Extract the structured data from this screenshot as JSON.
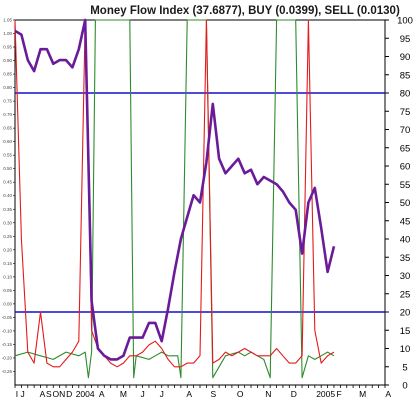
{
  "chart_data": {
    "type": "line",
    "title": "Money Flow Index (37.6877), BUY (0.0399), SELL (0.0130)",
    "ylim": [
      0,
      100
    ],
    "right_axis_ticks": [
      0,
      5,
      10,
      15,
      20,
      25,
      30,
      35,
      40,
      45,
      50,
      55,
      60,
      65,
      70,
      75,
      80,
      85,
      90,
      95,
      100
    ],
    "left_axis_ylim": [
      -0.3,
      1.05
    ],
    "left_axis_ticks": [
      "-0.25",
      "-0.20",
      "-0.15",
      "-0.10",
      "-0.05",
      "0.00",
      "0.05",
      "0.10",
      "0.15",
      "0.20",
      "0.25",
      "0.30",
      "0.35",
      "0.40",
      "0.45",
      "0.50",
      "0.55",
      "0.60",
      "0.65",
      "0.70",
      "0.75",
      "0.80",
      "0.85",
      "0.90",
      "0.95",
      "1.00",
      "1.05"
    ],
    "x_domain": [
      0,
      58
    ],
    "x_labels": [
      {
        "x": 0.3,
        "label": "I"
      },
      {
        "x": 1.2,
        "label": "J"
      },
      {
        "x": 4.3,
        "label": "A"
      },
      {
        "x": 5.3,
        "label": "S"
      },
      {
        "x": 6.4,
        "label": "O"
      },
      {
        "x": 7.4,
        "label": "N"
      },
      {
        "x": 8.5,
        "label": "D"
      },
      {
        "x": 11.0,
        "label": "2004"
      },
      {
        "x": 13.6,
        "label": "A"
      },
      {
        "x": 17.0,
        "label": "M"
      },
      {
        "x": 20.0,
        "label": "J"
      },
      {
        "x": 23.0,
        "label": "J"
      },
      {
        "x": 27.3,
        "label": "A"
      },
      {
        "x": 31.1,
        "label": "S"
      },
      {
        "x": 35.3,
        "label": "O"
      },
      {
        "x": 39.7,
        "label": "N"
      },
      {
        "x": 43.7,
        "label": "D"
      },
      {
        "x": 48.7,
        "label": "2005"
      },
      {
        "x": 50.8,
        "label": "F"
      },
      {
        "x": 54.5,
        "label": "M"
      },
      {
        "x": 58.5,
        "label": "A"
      }
    ],
    "reference_lines": [
      {
        "y": 80,
        "color": "#1111cc"
      },
      {
        "y": 20,
        "color": "#1111cc"
      }
    ],
    "series": [
      {
        "color": "#6a1b9a",
        "x": [
          0,
          1,
          2,
          3,
          4,
          5,
          6,
          7,
          8,
          9,
          10,
          11,
          12,
          13,
          14,
          15,
          16,
          17,
          18,
          19,
          20,
          21,
          22,
          23,
          24,
          25,
          26,
          27,
          28,
          29,
          30,
          31,
          32,
          33,
          34,
          35,
          36,
          37,
          38,
          39,
          40,
          41,
          42,
          43,
          44,
          45,
          46,
          47,
          48,
          49,
          50
        ],
        "values": [
          97,
          96,
          89,
          86,
          92,
          92,
          88,
          89,
          89,
          87,
          92,
          100,
          23,
          10,
          8,
          7,
          7,
          8,
          13,
          13,
          13,
          17,
          17,
          12,
          21,
          31,
          40,
          46,
          52,
          50,
          61,
          77,
          62,
          58,
          60,
          62,
          58,
          59,
          55,
          57,
          56,
          55,
          53,
          50,
          48,
          36,
          50,
          54,
          43,
          31,
          38
        ]
      },
      {
        "color": "#2e8b2e",
        "x": [
          0,
          2,
          4,
          6,
          8,
          10,
          11,
          11.5,
          12,
          12.6,
          13,
          14,
          15,
          16,
          17,
          18,
          18.6,
          19,
          21,
          22,
          23,
          24,
          25.5,
          26,
          27,
          27.6,
          28,
          29,
          30,
          31,
          33,
          35,
          36,
          37,
          38,
          39,
          40,
          41,
          42,
          43,
          43.6,
          44,
          45,
          46,
          47,
          48,
          49,
          50
        ],
        "values": [
          8,
          9,
          8,
          7,
          9,
          8,
          9,
          2,
          9,
          100,
          100,
          100,
          100,
          100,
          100,
          100,
          2,
          8,
          7,
          8,
          9,
          8,
          8,
          2,
          100,
          100,
          100,
          100,
          100,
          2,
          8,
          9,
          8,
          9,
          8,
          7,
          2,
          100,
          100,
          100,
          100,
          100,
          2,
          8,
          7,
          8,
          9,
          8
        ]
      },
      {
        "color": "#e41a1c",
        "x": [
          0,
          1,
          2,
          3,
          4,
          5,
          6,
          7,
          8,
          9,
          10,
          11,
          12,
          13,
          14,
          15,
          16,
          17,
          18,
          19,
          20,
          21,
          22,
          23,
          24,
          25,
          26,
          27,
          28,
          29,
          30,
          31,
          32,
          33,
          34,
          35,
          36,
          37,
          38,
          39,
          40,
          41,
          42,
          43,
          44,
          45,
          46,
          47,
          48,
          49,
          50
        ],
        "values": [
          100,
          40,
          9,
          6,
          20,
          6,
          5,
          5,
          7,
          9,
          12,
          100,
          15,
          10,
          8,
          6,
          5,
          6,
          8,
          8,
          9,
          11,
          12,
          10,
          7,
          5,
          5,
          6,
          6,
          8,
          100,
          6,
          7,
          9,
          8,
          9,
          10,
          9,
          8,
          8,
          8,
          10,
          8,
          6,
          6,
          8,
          100,
          15,
          6,
          8,
          9
        ]
      }
    ]
  }
}
